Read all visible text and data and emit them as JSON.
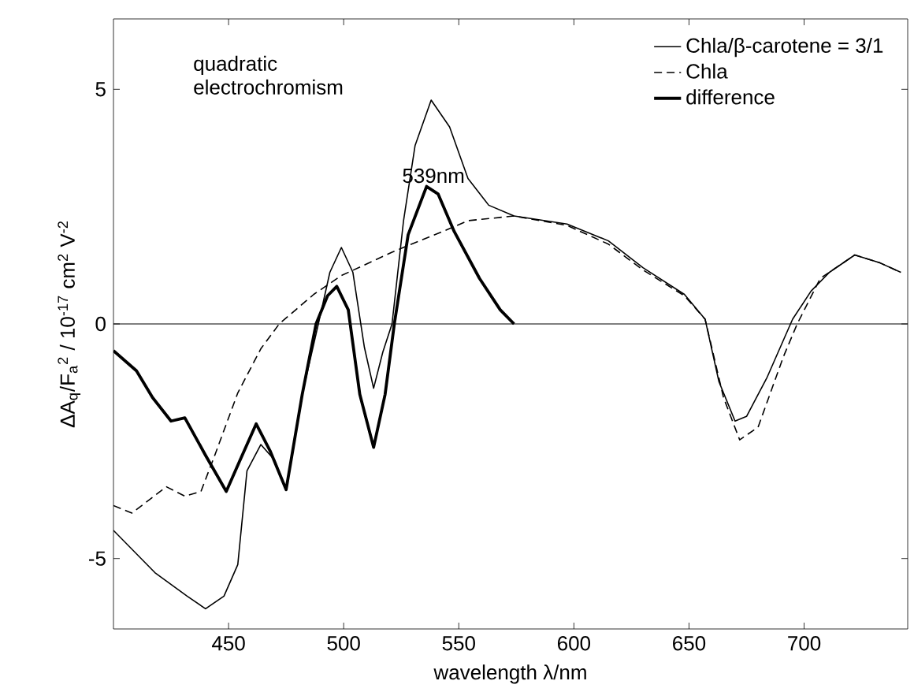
{
  "chart_data": {
    "type": "line",
    "xlabel": "wavelength λ/nm",
    "ylabel": "ΔA$_{q}$/F$_{a}$$^{2}$ / 10$^{-17}$ cm$^{2}$ V$^{-2}$",
    "xlim": [
      400,
      745
    ],
    "ylim": [
      -6.5,
      6.5
    ],
    "xticks": [
      450,
      500,
      550,
      600,
      650,
      700
    ],
    "yticks": [
      -5,
      0,
      5
    ],
    "legend": "top right",
    "grid": false,
    "marker": "none",
    "ref_lines": [
      {
        "axis": "y",
        "value": 0,
        "color": "#000000",
        "line_style": "solid"
      }
    ],
    "annotations": [
      "quadratic electrochromism",
      {
        "text": "539nm",
        "x": 539,
        "y": 2.93
      }
    ],
    "series": [
      {
        "name": "Chla/β-carotene = 3/1",
        "color": "#000000",
        "line_style": "solid",
        "x": [
          400,
          418,
          432,
          440,
          448,
          454,
          458,
          464,
          470,
          475,
          482,
          489,
          494,
          499,
          504,
          509,
          513,
          517,
          521,
          526,
          531,
          538,
          546,
          554,
          563,
          574,
          597,
          615,
          630,
          648,
          657,
          663,
          670,
          675,
          684,
          695,
          703,
          711,
          722,
          733,
          742
        ],
        "values": [
          -4.4,
          -5.3,
          -5.8,
          -6.07,
          -5.8,
          -5.13,
          -3.13,
          -2.57,
          -2.9,
          -3.53,
          -1.5,
          0,
          1.1,
          1.63,
          1.1,
          -0.5,
          -1.37,
          -0.6,
          0,
          2.2,
          3.8,
          4.77,
          4.2,
          3.1,
          2.53,
          2.3,
          2.13,
          1.77,
          1.2,
          0.63,
          0.1,
          -1.23,
          -2.07,
          -1.97,
          -1.13,
          0.1,
          0.7,
          1.1,
          1.47,
          1.3,
          1.1
        ]
      },
      {
        "name": "Chla",
        "color": "#000000",
        "line_style": "dashed",
        "x": [
          400,
          408,
          423,
          431,
          438,
          444,
          454,
          464,
          472,
          487,
          499,
          521,
          543,
          554,
          574,
          597,
          615,
          630,
          648,
          657,
          665,
          672,
          680,
          691,
          697,
          707,
          722,
          733,
          742
        ],
        "values": [
          -3.87,
          -4.03,
          -3.47,
          -3.67,
          -3.57,
          -2.8,
          -1.47,
          -0.53,
          0,
          0.63,
          1.03,
          1.53,
          1.97,
          2.2,
          2.3,
          2.1,
          1.7,
          1.15,
          0.6,
          0.1,
          -1.57,
          -2.47,
          -2.2,
          -0.7,
          0,
          0.97,
          1.47,
          1.3,
          1.1
        ]
      },
      {
        "name": "difference",
        "color": "#000000",
        "line_style": "solid",
        "x": [
          400,
          410,
          417,
          425,
          431,
          440,
          449,
          455,
          462,
          468,
          475,
          482,
          488,
          493,
          497,
          502,
          507,
          513,
          518,
          522,
          528,
          536,
          541,
          548,
          559,
          568,
          574
        ],
        "values": [
          -0.57,
          -1.0,
          -1.57,
          -2.07,
          -2.0,
          -2.8,
          -3.57,
          -2.9,
          -2.13,
          -2.7,
          -3.53,
          -1.5,
          0,
          0.6,
          0.8,
          0.3,
          -1.5,
          -2.63,
          -1.5,
          0,
          1.9,
          2.93,
          2.77,
          1.97,
          0.97,
          0.3,
          0
        ]
      }
    ]
  }
}
